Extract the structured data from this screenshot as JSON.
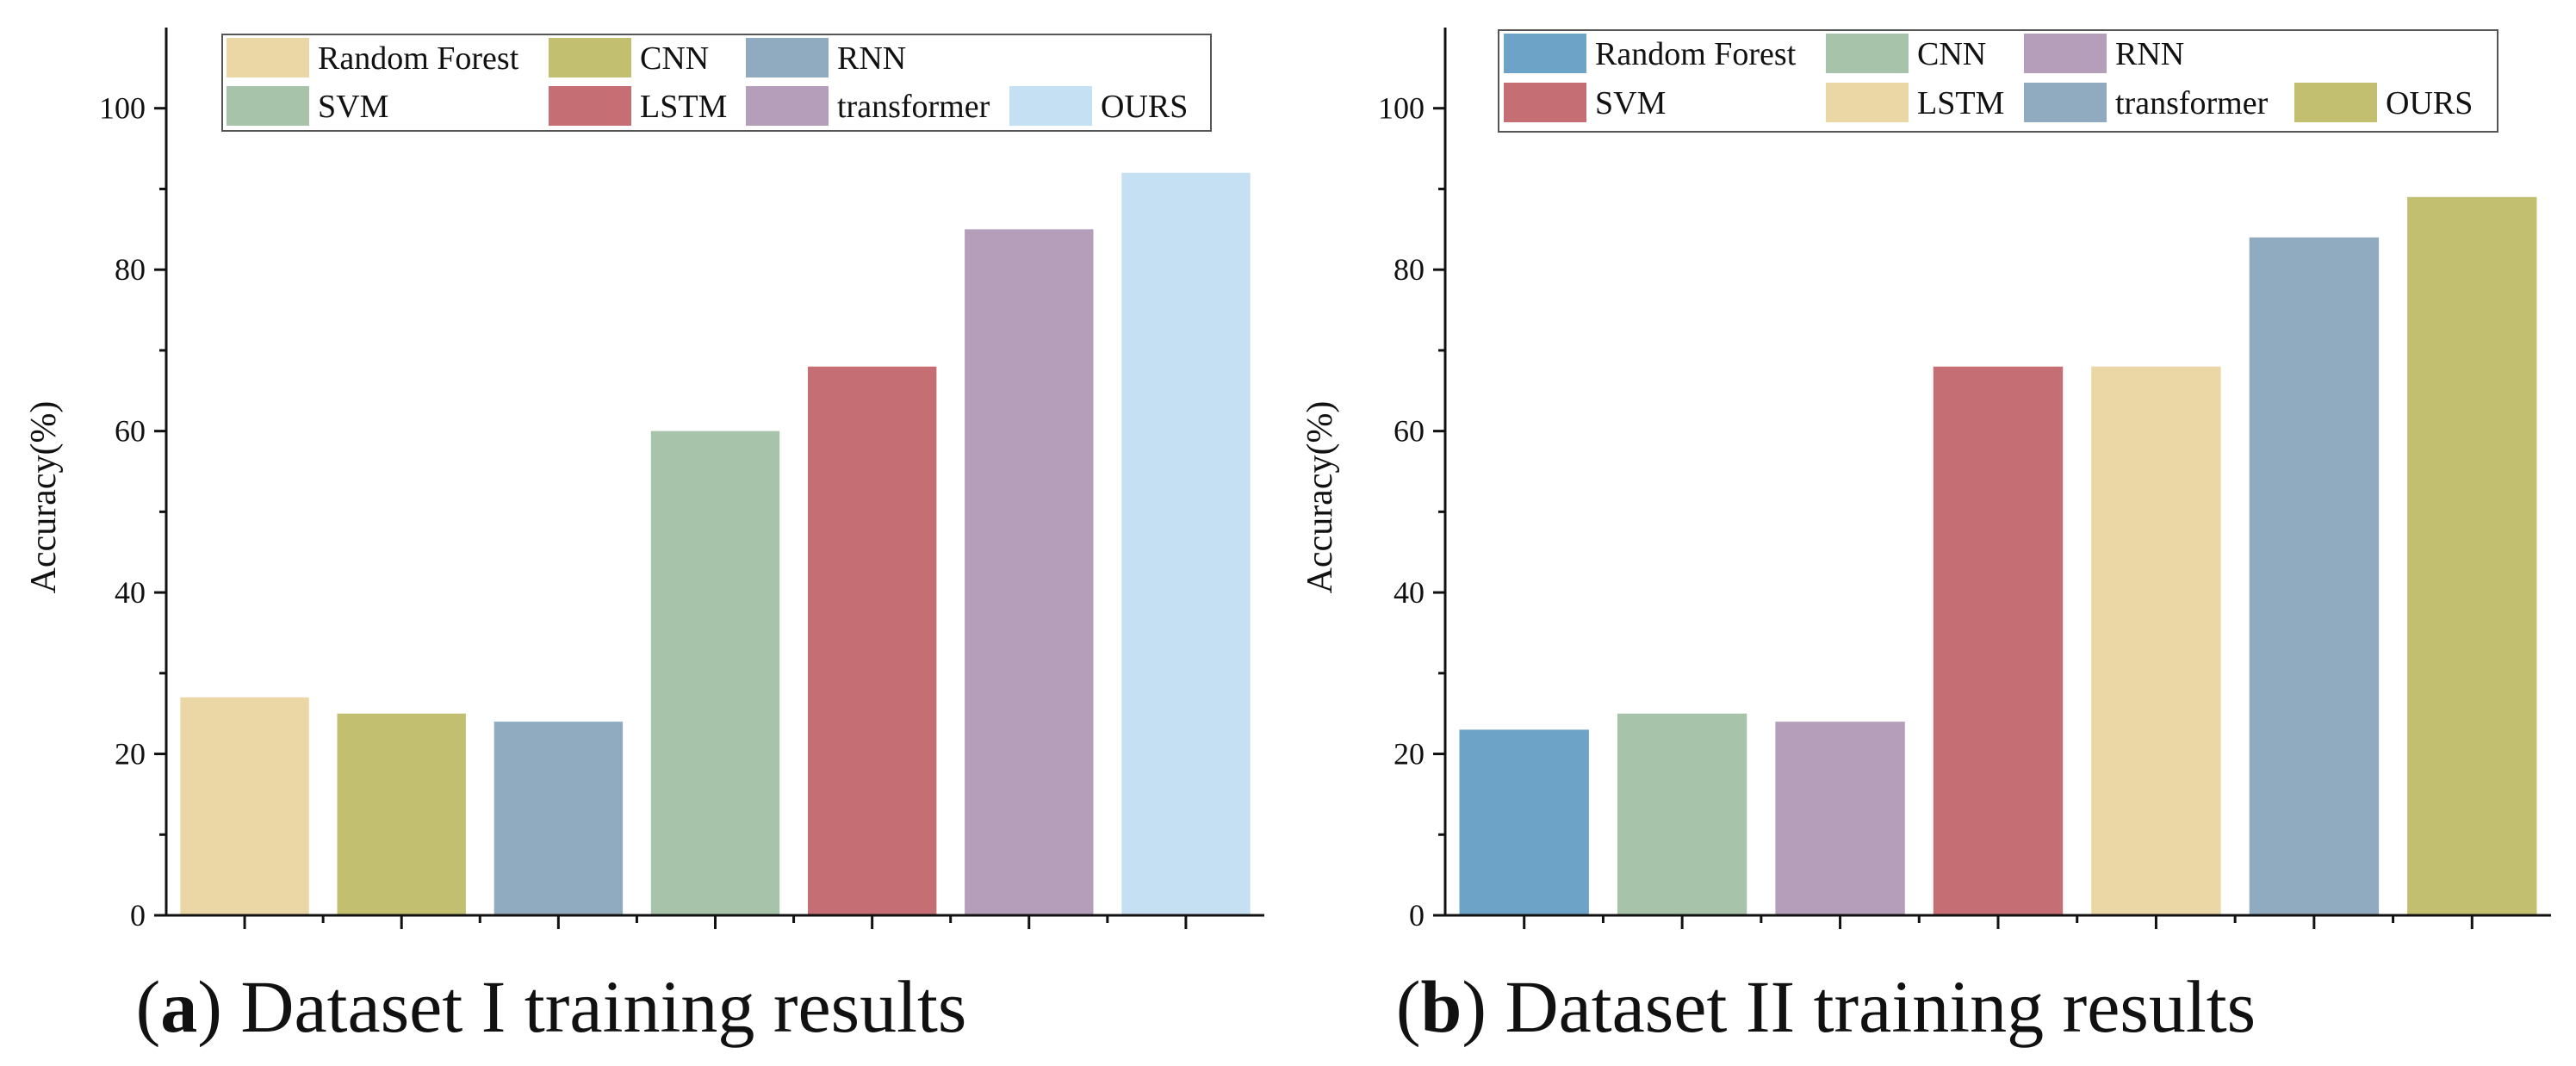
{
  "figure_captions": [
    {
      "open": "(",
      "letter": "a",
      "close": ")",
      "text": " Dataset I training results"
    },
    {
      "open": "(",
      "letter": "b",
      "close": ")",
      "text": " Dataset II training results"
    }
  ],
  "chart_data": [
    {
      "type": "bar",
      "title": "",
      "xlabel": "",
      "ylabel": "Accuracy(%)",
      "ylim": [
        0,
        110
      ],
      "yticks": [
        0,
        20,
        40,
        60,
        80,
        100
      ],
      "categories": [
        "Random Forest",
        "CNN",
        "RNN",
        "SVM",
        "LSTM",
        "transformer",
        "OURS"
      ],
      "values": [
        27,
        25,
        24,
        60,
        68,
        85,
        92
      ],
      "colors": [
        "#EBD6A5",
        "#C3BF70",
        "#90ABBF",
        "#A7C3AA",
        "#C56F74",
        "#B59EBA",
        "#C5E0F3"
      ],
      "legend": {
        "position": "top",
        "rows": [
          [
            {
              "label": "Random Forest",
              "color": "#EBD6A5"
            },
            {
              "label": "CNN",
              "color": "#C3BF70"
            },
            {
              "label": "RNN",
              "color": "#90ABBF"
            }
          ],
          [
            {
              "label": "SVM",
              "color": "#A7C3AA"
            },
            {
              "label": "LSTM",
              "color": "#C56F74"
            },
            {
              "label": "transformer",
              "color": "#B59EBA"
            },
            {
              "label": "OURS",
              "color": "#C5E0F3"
            }
          ]
        ]
      }
    },
    {
      "type": "bar",
      "title": "",
      "xlabel": "",
      "ylabel": "Accuracy(%)",
      "ylim": [
        0,
        110
      ],
      "yticks": [
        0,
        20,
        40,
        60,
        80,
        100
      ],
      "categories": [
        "Random Forest",
        "CNN",
        "RNN",
        "SVM",
        "LSTM",
        "transformer",
        "OURS"
      ],
      "values": [
        23,
        25,
        24,
        68,
        68,
        84,
        89
      ],
      "colors": [
        "#6DA3C6",
        "#A7C3AA",
        "#B59EBA",
        "#C56F74",
        "#EBD6A5",
        "#90ABBF",
        "#C3BF70"
      ],
      "legend": {
        "position": "top",
        "rows": [
          [
            {
              "label": "Random Forest",
              "color": "#6DA3C6"
            },
            {
              "label": "CNN",
              "color": "#A7C3AA"
            },
            {
              "label": "RNN",
              "color": "#B59EBA"
            }
          ],
          [
            {
              "label": "SVM",
              "color": "#C56F74"
            },
            {
              "label": "LSTM",
              "color": "#EBD6A5"
            },
            {
              "label": "transformer",
              "color": "#90ABBF"
            },
            {
              "label": "OURS",
              "color": "#C3BF70"
            }
          ]
        ]
      }
    }
  ]
}
